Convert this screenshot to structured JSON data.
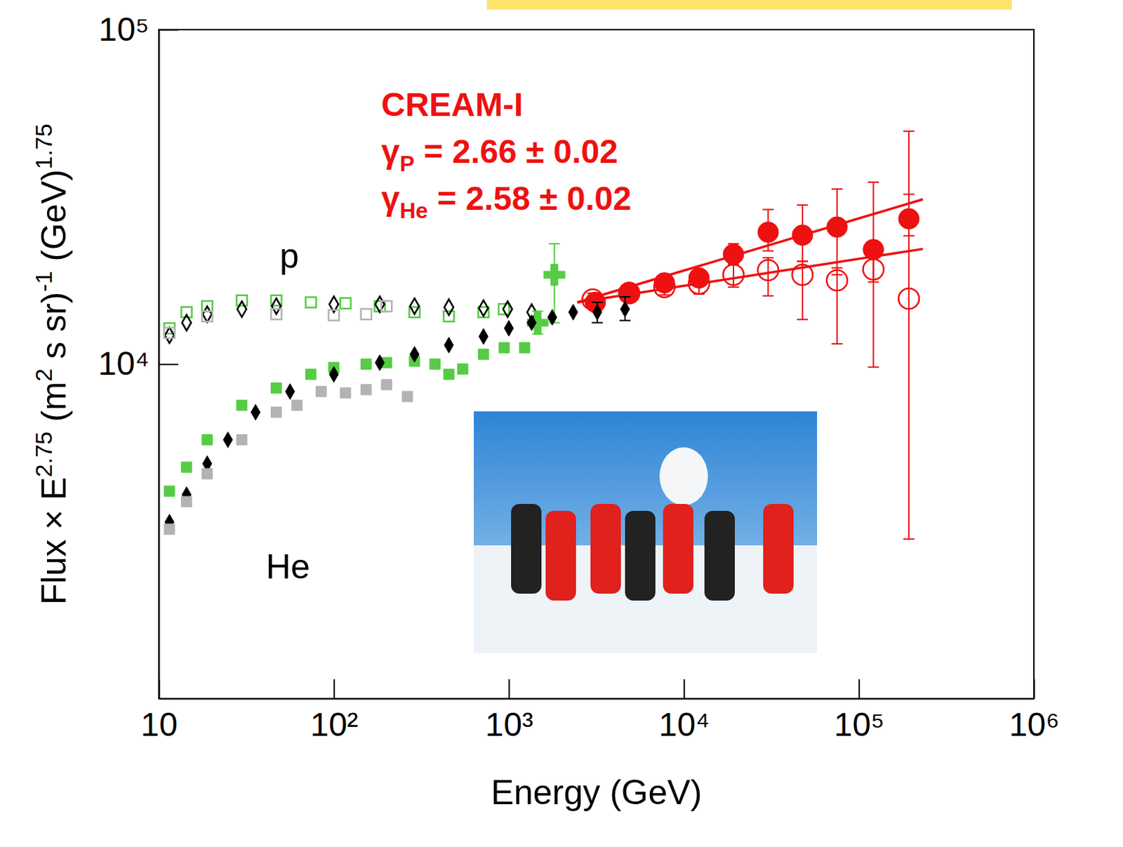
{
  "chart_data": {
    "type": "scatter",
    "log": true,
    "grid": false,
    "x_label": "Energy (GeV)",
    "y_label": [
      {
        "text": "Flux × E"
      },
      {
        "text": "2.75",
        "sup": true
      },
      {
        "text": " (m"
      },
      {
        "text": "2",
        "sup": true
      },
      {
        "text": " s sr)"
      },
      {
        "text": "-1",
        "sup": true
      },
      {
        "text": " (GeV)"
      },
      {
        "text": "1.75",
        "sup": true
      }
    ],
    "xlim": [
      10,
      1000000
    ],
    "ylim": [
      1000,
      100000
    ],
    "xticks": [
      10,
      {
        "value": 100,
        "label": "10²"
      },
      {
        "value": 1000,
        "label": "10³"
      },
      {
        "value": 10000,
        "label": "10⁴"
      },
      {
        "value": 100000,
        "label": "10⁵"
      },
      {
        "value": 1000000,
        "label": "10⁶"
      }
    ],
    "yticks": [
      {
        "value": 10000,
        "label": "10⁴"
      },
      {
        "value": 100000,
        "label": "10⁵"
      }
    ],
    "annotations": [
      {
        "parts": [
          {
            "text": "CREAM-I"
          }
        ],
        "color": "#ee1111"
      },
      {
        "parts": [
          {
            "text": "γ"
          },
          {
            "text": "P",
            "sub": true
          },
          {
            "text": " = 2.66 ± 0.02"
          }
        ],
        "color": "#ee1111"
      },
      {
        "parts": [
          {
            "text": "γ"
          },
          {
            "text": "He",
            "sub": true
          },
          {
            "text": " = 2.58 ± 0.02"
          }
        ],
        "color": "#ee1111"
      },
      {
        "parts": [
          {
            "text": "p"
          }
        ],
        "color": "#000000"
      },
      {
        "parts": [
          {
            "text": "He"
          }
        ],
        "color": "#000000"
      }
    ],
    "series": [
      {
        "type": "scatter",
        "marker": "open-circle",
        "color": "#ee1111",
        "x": [
          3010,
          4870,
          7740,
          12200,
          19200,
          30300,
          47600,
          75000,
          121000,
          193000
        ],
        "values": [
          15600,
          16300,
          17000,
          17400,
          18500,
          19100,
          18500,
          17800,
          19200,
          15700
        ],
        "error_minus": [
          700,
          800,
          900,
          1200,
          1500,
          3100,
          4900,
          6300,
          9400,
          12700
        ],
        "error_plus": [
          700,
          800,
          900,
          1200,
          1500,
          1700,
          1800,
          1600,
          2100,
          34000
        ]
      },
      {
        "type": "scatter",
        "marker": "circle",
        "color": "#ee1111",
        "x": [
          3120,
          4870,
          7740,
          12200,
          19200,
          30300,
          47600,
          75000,
          121000,
          193000
        ],
        "values": [
          15300,
          16400,
          17500,
          18100,
          21300,
          24800,
          24300,
          25700,
          22000,
          27200
        ],
        "error_minus": [
          600,
          700,
          800,
          1000,
          1500,
          3000,
          4000,
          7200,
          4400,
          3000
        ],
        "error_plus": [
          600,
          700,
          800,
          1000,
          1600,
          4200,
          5600,
          7700,
          13000,
          5000
        ]
      },
      {
        "type": "line",
        "line_style": "solid",
        "color": "#ee1111",
        "x": [
          2460,
          232000
        ],
        "values": [
          15300,
          22100
        ]
      },
      {
        "type": "line",
        "line_style": "solid",
        "color": "#ee1111",
        "x": [
          2460,
          232000
        ],
        "values": [
          15300,
          31100
        ]
      },
      {
        "type": "scatter",
        "marker": "open-square",
        "color": "#55cc44",
        "x": [
          11.5,
          14.4,
          18.9,
          29.8,
          46.9,
          73.9,
          116.6,
          183,
          289,
          454,
          716,
          937
        ],
        "values": [
          12800,
          14300,
          14900,
          15500,
          15500,
          15300,
          15200,
          14900,
          14300,
          13900,
          14300,
          14600
        ]
      },
      {
        "type": "scatter",
        "marker": "open-diamond",
        "color": "#000000",
        "x": [
          11.5,
          14.4,
          18.9,
          29.8,
          46.9,
          100,
          183,
          289,
          454,
          716,
          984,
          1350
        ],
        "values": [
          12200,
          13300,
          14100,
          14600,
          14900,
          15100,
          15100,
          14900,
          14800,
          14700,
          14600,
          14300
        ]
      },
      {
        "type": "scatter",
        "marker": "open-square",
        "color": "#b3b3b3",
        "x": [
          11.5,
          18.9,
          46.9,
          100,
          153,
          200
        ],
        "values": [
          12400,
          13900,
          14100,
          14000,
          14100,
          14900
        ]
      },
      {
        "type": "scatter",
        "marker": "plus",
        "color": "#55cc44",
        "x": [
          1820
        ],
        "values": [
          18500
        ],
        "error_minus": [
          5200
        ],
        "error_plus": [
          4400
        ]
      },
      {
        "type": "scatter",
        "marker": "square",
        "color": "#55cc44",
        "x": [
          11.5,
          14.4,
          18.9,
          29.8,
          46.9,
          73.9,
          100,
          153,
          200,
          289,
          378,
          454,
          545,
          716,
          940,
          1230
        ],
        "values": [
          4170,
          4920,
          5940,
          7530,
          8480,
          9320,
          9770,
          10000,
          10100,
          10200,
          10000,
          9320,
          9670,
          10700,
          11200,
          11200
        ]
      },
      {
        "type": "scatter",
        "marker": "plus",
        "color": "#55cc44",
        "x": [
          1460
        ],
        "values": [
          13300
        ],
        "error_minus": [
          1000
        ],
        "error_plus": [
          1100
        ]
      },
      {
        "type": "scatter",
        "marker": "diamond",
        "color": "#000000",
        "x": [
          11.5,
          14.4,
          18.9,
          24.8,
          35.7,
          56.2,
          100,
          183,
          289,
          454,
          716,
          1000,
          1350,
          1770,
          2330
        ],
        "values": [
          3370,
          4070,
          5040,
          5940,
          7180,
          8280,
          9320,
          10100,
          10700,
          11400,
          12100,
          12800,
          13300,
          13800,
          14300
        ]
      },
      {
        "type": "scatter",
        "marker": "diamond",
        "color": "#000000",
        "x": [
          3200,
          4610
        ],
        "values": [
          14300,
          14600
        ],
        "error_minus": [
          1000,
          1100
        ],
        "error_plus": [
          1000,
          1300
        ]
      },
      {
        "type": "scatter",
        "marker": "square",
        "color": "#b3b3b3",
        "x": [
          11.5,
          14.4,
          18.9,
          29.8,
          46.9,
          61.6,
          84.7,
          116.6,
          153,
          200,
          263
        ],
        "values": [
          3210,
          3880,
          4700,
          5940,
          7180,
          7530,
          8280,
          8200,
          8390,
          8680,
          8000
        ]
      }
    ]
  }
}
